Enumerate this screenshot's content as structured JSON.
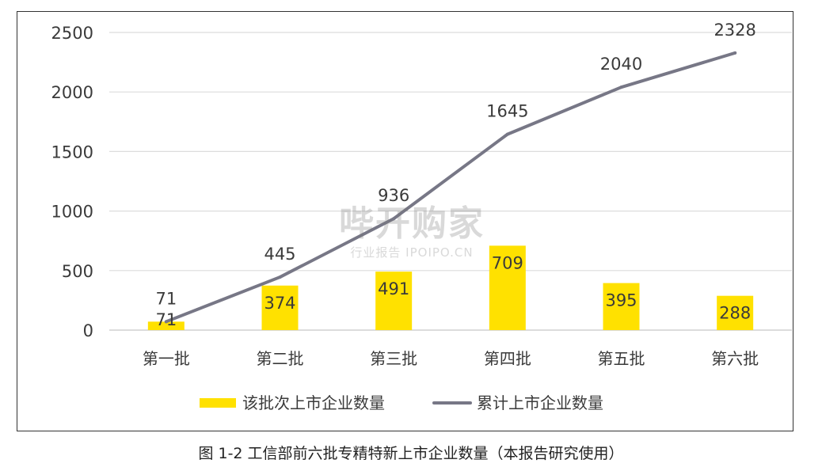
{
  "chart_data": {
    "type": "bar",
    "categories": [
      "第一批",
      "第二批",
      "第三批",
      "第四批",
      "第五批",
      "第六批"
    ],
    "series": [
      {
        "name": "该批次上市企业数量",
        "type": "bar",
        "values": [
          71,
          374,
          491,
          709,
          395,
          288
        ],
        "color": "#FFE100"
      },
      {
        "name": "累计上市企业数量",
        "type": "line",
        "values": [
          71,
          445,
          936,
          1645,
          2040,
          2328
        ],
        "color": "#777786"
      }
    ],
    "y_ticks": [
      "0",
      "500",
      "1000",
      "1500",
      "2000",
      "2500"
    ],
    "ylim": [
      0,
      2500
    ],
    "grid": true,
    "legend_position": "bottom",
    "title": "",
    "xlabel": "",
    "ylabel": ""
  },
  "caption": "图 1-2 工信部前六批专精特新上市企业数量（本报告研究使用）",
  "watermark": {
    "main": "哔开购家",
    "sub": "行业报告 IPOIPO.CN"
  }
}
